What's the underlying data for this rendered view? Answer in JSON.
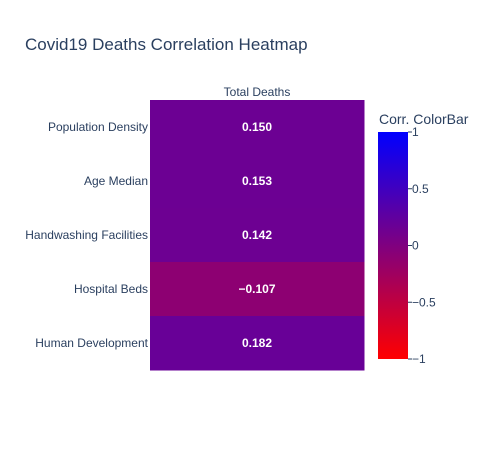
{
  "chart_data": {
    "type": "heatmap",
    "title": "Covid19 Deaths Correlation Heatmap",
    "x_categories": [
      "Total Deaths"
    ],
    "y_categories": [
      "Population Density",
      "Age Median",
      "Handwashing Facilities",
      "Hospital Beds",
      "Human Development"
    ],
    "values": [
      [
        0.15
      ],
      [
        0.153
      ],
      [
        0.142
      ],
      [
        -0.107
      ],
      [
        0.182
      ]
    ],
    "cell_labels": [
      "0.150",
      "0.153",
      "0.142",
      "−0.107",
      "0.182"
    ],
    "colorbar": {
      "title": "Corr. ColorBar",
      "range": [
        -1,
        1
      ],
      "ticks": [
        1,
        0.5,
        0,
        -0.5,
        -1
      ],
      "tick_labels": [
        "1",
        "0.5",
        "0",
        "−0.5",
        "−1"
      ],
      "colorscale": [
        [
          "#ff0000",
          -1
        ],
        [
          "#0000ff",
          1
        ]
      ]
    },
    "x_axis_side": "top"
  }
}
